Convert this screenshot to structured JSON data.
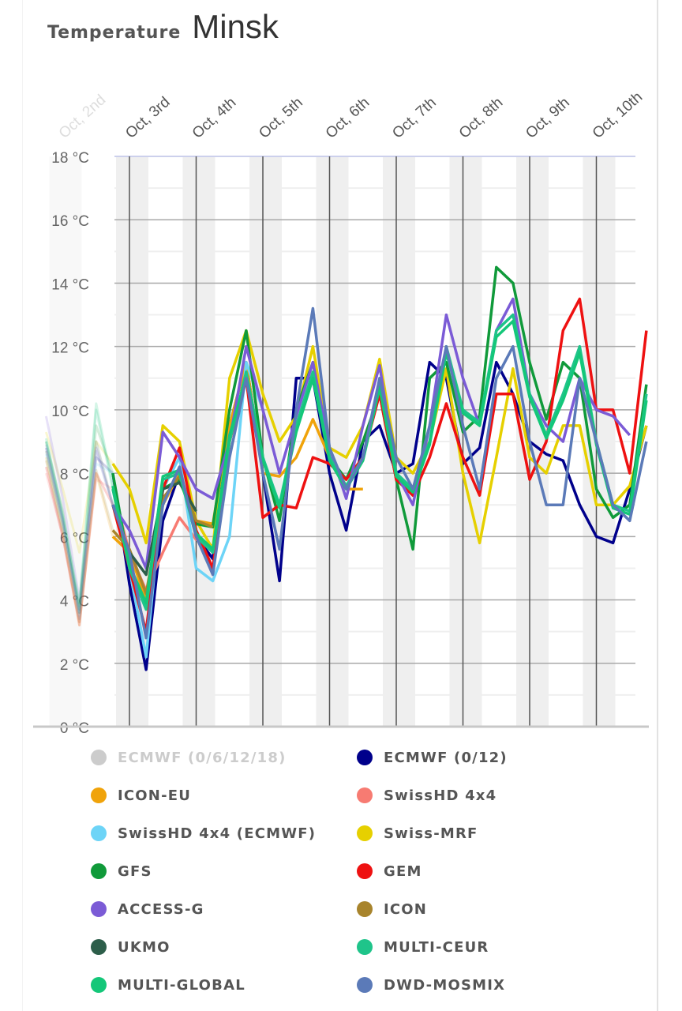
{
  "header": {
    "label": "Temperature",
    "city": "Minsk"
  },
  "chart_data": {
    "type": "line",
    "title": "Temperature Minsk",
    "xlabel": "",
    "ylabel": "",
    "ylim": [
      0,
      18
    ],
    "xlim_days": [
      1.6,
      10.8
    ],
    "y_ticks": [
      "0 °C",
      "2 °C",
      "4 °C",
      "6 °C",
      "8 °C",
      "10 °C",
      "12 °C",
      "14 °C",
      "16 °C",
      "18 °C"
    ],
    "x_ticks": [
      {
        "day": 2,
        "label": "Oct, 2nd"
      },
      {
        "day": 3,
        "label": "Oct, 3rd"
      },
      {
        "day": 4,
        "label": "Oct, 4th"
      },
      {
        "day": 5,
        "label": "Oct, 5th"
      },
      {
        "day": 6,
        "label": "Oct, 6th"
      },
      {
        "day": 7,
        "label": "Oct, 7th"
      },
      {
        "day": 8,
        "label": "Oct, 8th"
      },
      {
        "day": 9,
        "label": "Oct, 9th"
      },
      {
        "day": 10,
        "label": "Oct, 10th"
      }
    ],
    "grid": true,
    "past_until_day": 2.75,
    "x_start_day": 1.75,
    "x_step_days": 0.25,
    "legend_position": "bottom",
    "series": [
      {
        "name": "ECMWF (0/6/12/18)",
        "color": "#cccccc",
        "hidden": true,
        "values": []
      },
      {
        "name": "ECMWF (0/12)",
        "color": "#00008b",
        "values": [
          8.8,
          6.5,
          3.6,
          8.5,
          8.0,
          4.5,
          1.8,
          6.5,
          8.0,
          6.0,
          5.3,
          9.5,
          11.5,
          8.0,
          4.6,
          11.0,
          11.0,
          8.0,
          6.2,
          9.0,
          9.5,
          8.0,
          8.3,
          11.5,
          11.0,
          8.3,
          8.8,
          11.5,
          10.5,
          9.0,
          8.6,
          8.4,
          7.0,
          6.0,
          5.8,
          7.5,
          9.5
        ]
      },
      {
        "name": "ICON-EU",
        "color": "#f0a30a",
        "values": [
          8.5,
          6.2,
          3.2,
          8.0,
          6.0,
          5.5,
          4.0,
          7.0,
          8.0,
          6.5,
          6.4,
          9.5,
          11.5,
          8.0,
          7.9,
          8.5,
          9.7,
          8.5,
          7.5,
          7.5,
          null,
          null,
          null,
          null,
          null,
          null,
          null,
          null,
          null,
          null,
          null,
          null,
          null,
          null,
          null,
          null,
          null
        ]
      },
      {
        "name": "SwissHD 4x4",
        "color": "#f77b72",
        "values": [
          8.0,
          6.0,
          3.3,
          7.8,
          7.5,
          5.5,
          4.3,
          5.5,
          6.6,
          5.9,
          5.7,
          null,
          null,
          null,
          null,
          null,
          null,
          null,
          null,
          null,
          null,
          null,
          null,
          null,
          null,
          null,
          null,
          null,
          null,
          null,
          null,
          null,
          null,
          null,
          null,
          null,
          null
        ]
      },
      {
        "name": "SwissHD 4x4 (ECMWF)",
        "color": "#6dd4f7",
        "values": [
          8.6,
          6.3,
          3.5,
          8.3,
          8.0,
          5.0,
          2.2,
          7.5,
          8.5,
          5.0,
          4.6,
          6.0,
          11.5,
          10.0,
          null,
          null,
          null,
          null,
          null,
          null,
          null,
          null,
          null,
          null,
          null,
          null,
          null,
          null,
          null,
          null,
          null,
          null,
          null,
          null,
          null,
          null,
          null
        ]
      },
      {
        "name": "Swiss-MRF",
        "color": "#e6d000",
        "values": [
          9.3,
          7.5,
          5.5,
          9.0,
          8.3,
          7.5,
          5.8,
          9.5,
          9.0,
          6.5,
          5.6,
          11.0,
          12.5,
          10.5,
          9.0,
          9.8,
          12.0,
          8.8,
          8.5,
          9.5,
          11.6,
          8.5,
          8.0,
          9.0,
          11.3,
          8.0,
          5.8,
          8.5,
          11.3,
          8.5,
          8.0,
          9.5,
          9.5,
          7.0,
          7.0,
          7.6,
          9.5
        ]
      },
      {
        "name": "GFS",
        "color": "#109a3a",
        "values": [
          9.0,
          6.8,
          3.6,
          9.5,
          8.0,
          5.0,
          3.8,
          7.5,
          7.8,
          6.4,
          6.3,
          10.0,
          12.5,
          8.5,
          6.5,
          10.0,
          11.5,
          8.5,
          7.8,
          9.0,
          10.5,
          7.8,
          5.6,
          11.0,
          11.5,
          9.3,
          9.8,
          14.5,
          14.0,
          11.5,
          9.7,
          11.5,
          11.0,
          7.5,
          6.6,
          7.0,
          10.8
        ]
      },
      {
        "name": "GEM",
        "color": "#ee1111",
        "values": [
          8.2,
          6.0,
          3.2,
          8.0,
          7.0,
          5.0,
          3.0,
          7.5,
          8.8,
          6.2,
          5.0,
          9.0,
          11.0,
          6.6,
          7.0,
          6.9,
          8.5,
          8.3,
          7.8,
          8.5,
          10.5,
          7.8,
          7.3,
          8.5,
          10.2,
          8.5,
          7.3,
          10.5,
          10.5,
          7.8,
          9.0,
          12.5,
          13.5,
          10.0,
          10.0,
          8.0,
          12.5
        ]
      },
      {
        "name": "ACCESS-G",
        "color": "#7b5bd6",
        "values": [
          9.8,
          7.2,
          4.0,
          8.8,
          7.0,
          6.2,
          5.0,
          9.3,
          8.5,
          7.5,
          7.2,
          9.0,
          12.0,
          10.0,
          8.0,
          9.8,
          11.5,
          8.8,
          7.2,
          9.5,
          11.4,
          8.0,
          7.0,
          9.5,
          13.0,
          11.0,
          9.5,
          12.5,
          13.5,
          10.5,
          9.5,
          9.0,
          11.0,
          10.0,
          9.8,
          9.2,
          null
        ]
      },
      {
        "name": "ICON",
        "color": "#a8842c",
        "values": [
          8.4,
          6.1,
          3.3,
          8.1,
          6.2,
          5.6,
          4.2,
          7.2,
          7.9,
          6.5,
          6.3,
          null,
          null,
          null,
          null,
          null,
          null,
          null,
          null,
          null,
          null,
          null,
          null,
          null,
          null,
          null,
          null,
          null,
          null,
          null,
          null,
          null,
          null,
          null,
          null,
          null,
          null
        ]
      },
      {
        "name": "UKMO",
        "color": "#2d5e4a",
        "values": [
          8.7,
          6.4,
          3.7,
          9.0,
          7.0,
          5.5,
          4.8,
          7.5,
          7.7,
          6.8,
          null,
          null,
          null,
          null,
          null,
          null,
          null,
          null,
          null,
          null,
          null,
          null,
          null,
          null,
          null,
          null,
          null,
          null,
          null,
          null,
          null,
          null,
          null,
          null,
          null,
          null,
          null
        ]
      },
      {
        "name": "MULTI-CEUR",
        "color": "#1fc48a",
        "values": [
          9.0,
          6.6,
          3.8,
          10.0,
          7.5,
          5.0,
          3.7,
          7.8,
          8.0,
          6.0,
          5.5,
          9.0,
          11.2,
          8.5,
          7.0,
          9.5,
          11.2,
          8.5,
          7.6,
          8.5,
          10.8,
          8.0,
          7.5,
          9.0,
          12.0,
          10.0,
          9.6,
          12.5,
          13.0,
          10.5,
          9.2,
          10.5,
          12.0,
          9.0,
          7.0,
          6.8,
          10.5
        ]
      },
      {
        "name": "MULTI-GLOBAL",
        "color": "#14c779",
        "values": [
          9.1,
          6.7,
          3.9,
          10.2,
          7.6,
          5.1,
          3.9,
          7.9,
          8.1,
          6.1,
          5.6,
          9.2,
          11.0,
          8.4,
          6.9,
          9.3,
          11.0,
          8.4,
          7.5,
          8.4,
          10.7,
          7.9,
          7.4,
          8.9,
          11.8,
          9.9,
          9.5,
          12.3,
          12.8,
          10.4,
          9.1,
          10.3,
          11.8,
          8.9,
          6.9,
          6.7,
          10.3
        ]
      },
      {
        "name": "DWD-MOSMIX",
        "color": "#5b7ab8",
        "values": [
          8.9,
          6.6,
          3.4,
          8.7,
          7.0,
          5.5,
          2.8,
          7.0,
          8.2,
          6.0,
          4.8,
          8.5,
          11.0,
          8.0,
          5.6,
          10.0,
          13.2,
          8.8,
          7.5,
          8.5,
          11.0,
          8.5,
          7.5,
          9.5,
          12.0,
          9.5,
          7.5,
          11.0,
          12.0,
          9.0,
          7.0,
          7.0,
          11.0,
          9.0,
          7.0,
          6.5,
          9.0
        ]
      }
    ]
  }
}
